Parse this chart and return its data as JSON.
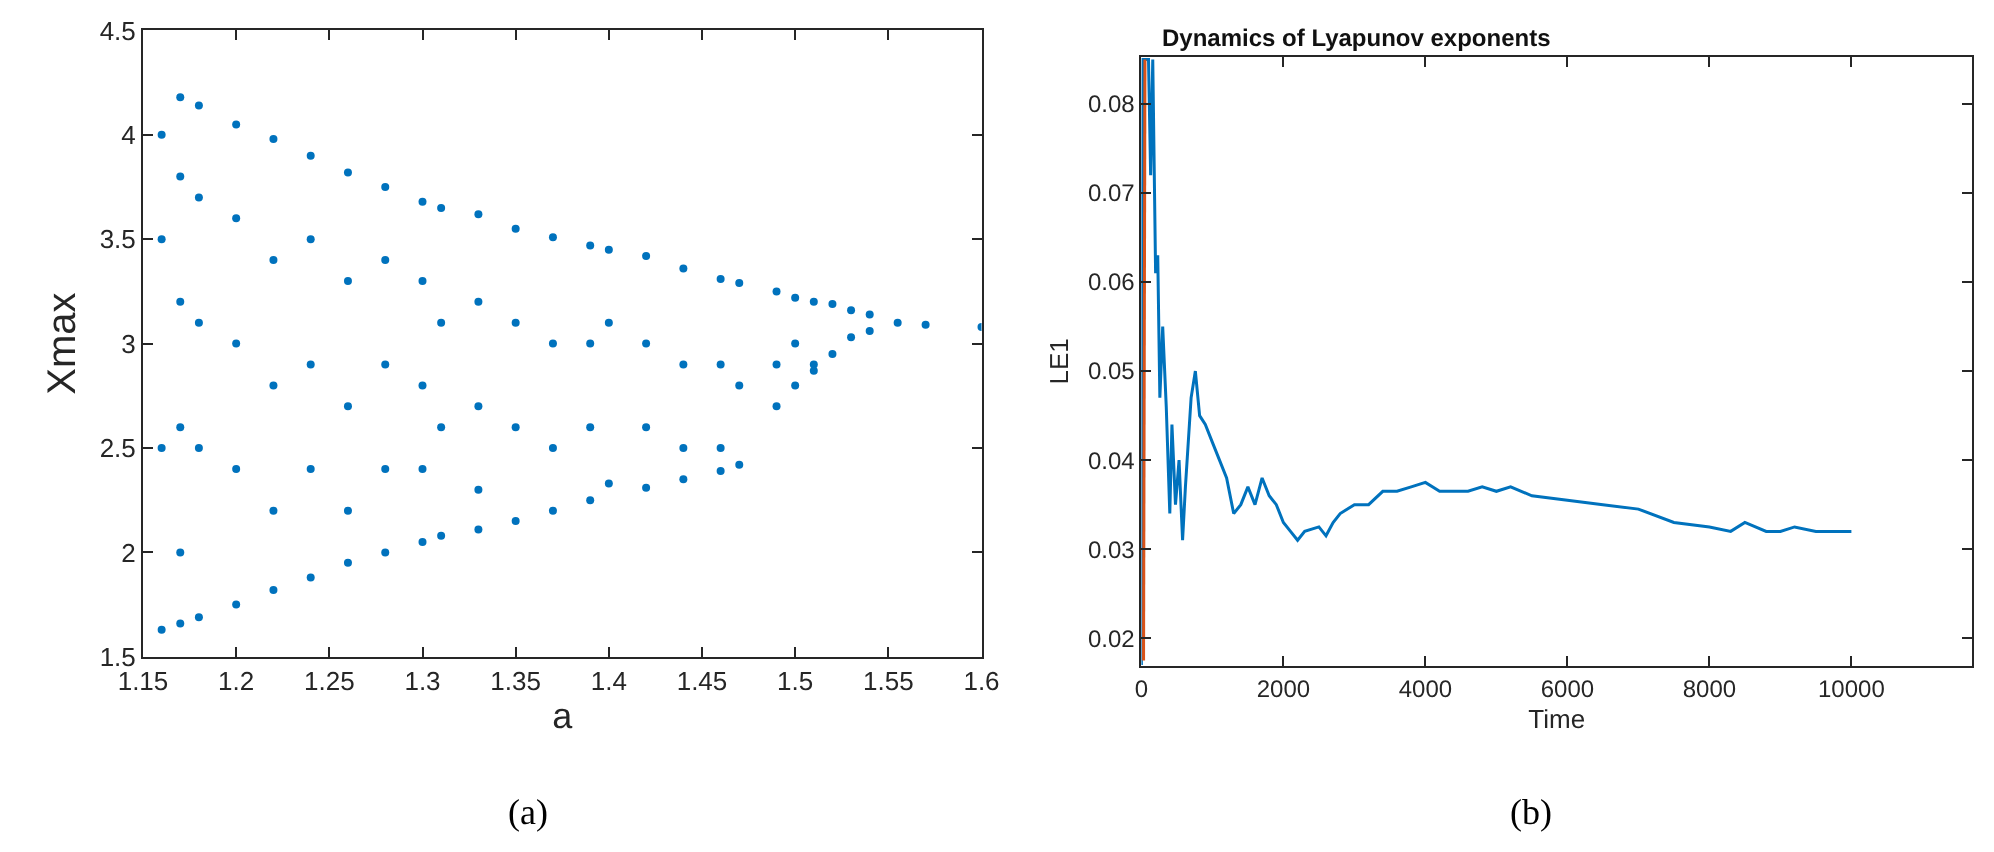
{
  "chart_data": [
    {
      "type": "scatter",
      "xlabel": "a",
      "ylabel": "Xmax",
      "xlim": [
        1.15,
        1.6
      ],
      "ylim": [
        1.5,
        4.5
      ],
      "xticks": [
        1.15,
        1.2,
        1.25,
        1.3,
        1.35,
        1.4,
        1.45,
        1.5,
        1.55,
        1.6
      ],
      "yticks": [
        1.5,
        2,
        2.5,
        3,
        3.5,
        4,
        4.5
      ],
      "marker": "circle",
      "annotations": [
        "(a)"
      ],
      "series": [
        {
          "color": "#0072bd",
          "x": [
            1.16,
            1.16,
            1.16,
            1.16,
            1.17,
            1.17,
            1.17,
            1.17,
            1.17,
            1.17,
            1.18,
            1.18,
            1.18,
            1.18,
            1.18,
            1.2,
            1.2,
            1.2,
            1.2,
            1.2,
            1.22,
            1.22,
            1.22,
            1.22,
            1.22,
            1.24,
            1.24,
            1.24,
            1.24,
            1.24,
            1.26,
            1.26,
            1.26,
            1.26,
            1.26,
            1.28,
            1.28,
            1.28,
            1.28,
            1.28,
            1.3,
            1.3,
            1.3,
            1.3,
            1.3,
            1.31,
            1.31,
            1.31,
            1.31,
            1.33,
            1.33,
            1.33,
            1.33,
            1.33,
            1.35,
            1.35,
            1.35,
            1.35,
            1.37,
            1.37,
            1.37,
            1.37,
            1.39,
            1.39,
            1.39,
            1.39,
            1.4,
            1.4,
            1.4,
            1.42,
            1.42,
            1.42,
            1.42,
            1.44,
            1.44,
            1.44,
            1.44,
            1.46,
            1.46,
            1.46,
            1.46,
            1.47,
            1.47,
            1.47,
            1.49,
            1.49,
            1.49,
            1.5,
            1.5,
            1.5,
            1.51,
            1.51,
            1.51,
            1.52,
            1.52,
            1.53,
            1.53,
            1.54,
            1.54,
            1.555,
            1.57,
            1.6
          ],
          "values": [
            4.0,
            3.5,
            2.5,
            1.63,
            4.18,
            3.8,
            3.2,
            2.6,
            2.0,
            1.66,
            4.14,
            3.7,
            3.1,
            2.5,
            1.69,
            4.05,
            3.6,
            3.0,
            2.4,
            1.75,
            3.98,
            3.4,
            2.8,
            2.2,
            1.82,
            3.9,
            3.5,
            2.9,
            2.4,
            1.88,
            3.82,
            3.3,
            2.7,
            2.2,
            1.95,
            3.75,
            3.4,
            2.9,
            2.4,
            2.0,
            3.68,
            3.3,
            2.8,
            2.4,
            2.05,
            3.65,
            3.1,
            2.6,
            2.08,
            3.62,
            3.2,
            2.7,
            2.3,
            2.11,
            3.55,
            3.1,
            2.6,
            2.15,
            3.51,
            3.0,
            2.5,
            2.2,
            3.47,
            3.0,
            2.6,
            2.25,
            3.45,
            3.1,
            2.33,
            3.42,
            3.0,
            2.6,
            2.31,
            3.36,
            2.9,
            2.5,
            2.35,
            3.31,
            2.9,
            2.5,
            2.39,
            3.29,
            2.8,
            2.42,
            3.25,
            2.9,
            2.7,
            3.22,
            3.0,
            2.8,
            3.2,
            2.9,
            2.87,
            3.19,
            2.95,
            3.16,
            3.03,
            3.14,
            3.06,
            3.1,
            3.09,
            3.08
          ]
        }
      ]
    },
    {
      "type": "line",
      "title": "Dynamics of Lyapunov exponents",
      "xlabel": "Time",
      "ylabel": "LE1",
      "xlim": [
        0,
        11700
      ],
      "ylim": [
        0.0169,
        0.0853
      ],
      "xticks": [
        0,
        2000,
        4000,
        6000,
        8000,
        10000
      ],
      "yticks": [
        0.02,
        0.03,
        0.04,
        0.05,
        0.06,
        0.07,
        0.08
      ],
      "marker": "none",
      "line_style": "solid",
      "annotations": [
        "(b)"
      ],
      "series": [
        {
          "color": "#d95319",
          "x": [
            30,
            50
          ],
          "values": [
            0.0175,
            0.085
          ]
        },
        {
          "color": "#0072bd",
          "x": [
            0,
            20,
            100,
            130,
            160,
            200,
            230,
            260,
            300,
            350,
            400,
            430,
            480,
            530,
            580,
            620,
            700,
            760,
            820,
            900,
            1000,
            1100,
            1200,
            1300,
            1400,
            1500,
            1600,
            1700,
            1800,
            1900,
            2000,
            2100,
            2200,
            2300,
            2500,
            2600,
            2700,
            2800,
            3000,
            3200,
            3400,
            3600,
            3800,
            4000,
            4200,
            4400,
            4600,
            4800,
            5000,
            5200,
            5500,
            6000,
            6500,
            7000,
            7500,
            8000,
            8300,
            8500,
            8800,
            9000,
            9200,
            9500,
            10000
          ],
          "values": [
            0.017,
            0.085,
            0.085,
            0.072,
            0.085,
            0.061,
            0.063,
            0.047,
            0.055,
            0.046,
            0.034,
            0.044,
            0.035,
            0.04,
            0.031,
            0.037,
            0.047,
            0.05,
            0.045,
            0.044,
            0.042,
            0.04,
            0.038,
            0.034,
            0.035,
            0.037,
            0.035,
            0.038,
            0.036,
            0.035,
            0.033,
            0.032,
            0.031,
            0.032,
            0.0325,
            0.0315,
            0.033,
            0.034,
            0.035,
            0.035,
            0.0365,
            0.0365,
            0.037,
            0.0375,
            0.0365,
            0.0365,
            0.0365,
            0.037,
            0.0365,
            0.037,
            0.036,
            0.0355,
            0.035,
            0.0345,
            0.033,
            0.0325,
            0.032,
            0.033,
            0.032,
            0.032,
            0.0325,
            0.032,
            0.032
          ]
        }
      ]
    }
  ]
}
